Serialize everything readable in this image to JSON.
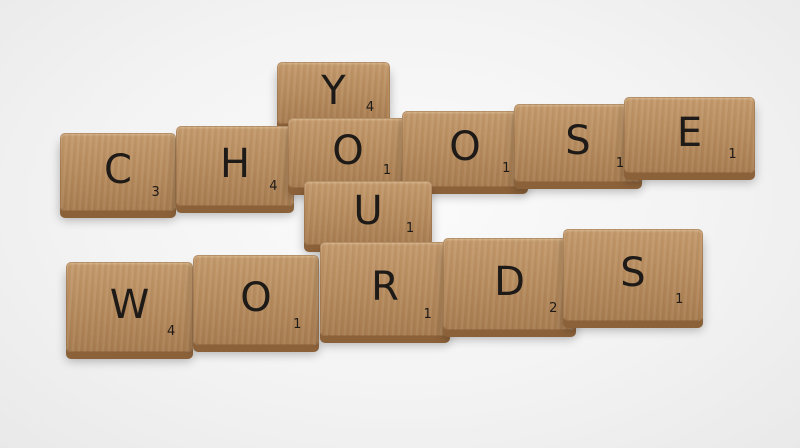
{
  "tiles": {
    "choose": [
      {
        "letter": "C",
        "value": "3"
      },
      {
        "letter": "H",
        "value": "4"
      },
      {
        "letter": "O",
        "value": "1"
      },
      {
        "letter": "O",
        "value": "1"
      },
      {
        "letter": "S",
        "value": "1"
      },
      {
        "letter": "E",
        "value": "1"
      }
    ],
    "your": [
      {
        "letter": "Y",
        "value": "4"
      },
      {
        "letter": "U",
        "value": "1"
      }
    ],
    "words": [
      {
        "letter": "W",
        "value": "4"
      },
      {
        "letter": "O",
        "value": "1"
      },
      {
        "letter": "R",
        "value": "1"
      },
      {
        "letter": "D",
        "value": "2"
      },
      {
        "letter": "S",
        "value": "1"
      }
    ]
  },
  "colors": {
    "wood_light": "#c49a6c",
    "wood_dark": "#8b6139",
    "ink": "#1d1a18",
    "background": "#f3f3f3"
  }
}
